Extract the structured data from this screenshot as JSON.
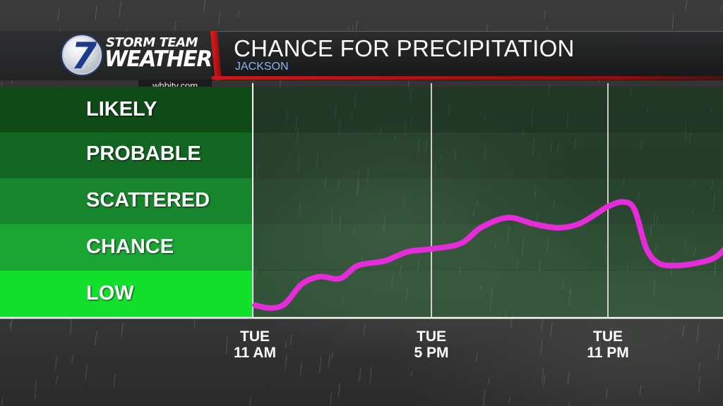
{
  "header": {
    "logo_number": "7",
    "logo_line1": "STORM TEAM",
    "logo_line2": "WEATHER",
    "website": "wbbjtv.com",
    "title": "CHANCE FOR PRECIPITATION",
    "location": "JACKSON"
  },
  "colors": {
    "curve": "#e62bd8",
    "band_likely": "#0f4a17",
    "band_probable": "#136621",
    "band_scattered": "#17852b",
    "band_chance": "#1ba535",
    "band_low": "#12e02d",
    "banner_red": "#c81a1a",
    "location_text": "#8fb2f0"
  },
  "chart_data": {
    "type": "line",
    "title": "CHANCE FOR PRECIPITATION",
    "subtitle": "JACKSON",
    "y_categories": [
      "LOW",
      "CHANCE",
      "SCATTERED",
      "PROBABLE",
      "LIKELY"
    ],
    "x_ticks": [
      {
        "hours": 0,
        "line1": "TUE",
        "line2": "11 AM"
      },
      {
        "hours": 6,
        "line1": "TUE",
        "line2": "5 PM"
      },
      {
        "hours": 12,
        "line1": "TUE",
        "line2": "11 PM"
      }
    ],
    "x_unit": "hours after TUE 11 AM",
    "y_unit": "category level (0 = bottom of LOW, 5 = top of LIKELY)",
    "xlim": [
      0,
      16
    ],
    "ylim": [
      0,
      5
    ],
    "grid": true,
    "series": [
      {
        "x": [
          0,
          0.5,
          1.0,
          1.6,
          2.2,
          2.9,
          3.5,
          4.4,
          5.2,
          6.0,
          7.0,
          7.7,
          8.6,
          9.5,
          10.3,
          11.0,
          11.6,
          12.0,
          12.5,
          12.9,
          13.3,
          13.7,
          14.2,
          14.9,
          15.6,
          16.0
        ],
        "y": [
          0.26,
          0.2,
          0.28,
          0.72,
          0.88,
          0.84,
          1.12,
          1.22,
          1.42,
          1.48,
          1.6,
          1.95,
          2.16,
          2.02,
          1.94,
          2.02,
          2.24,
          2.4,
          2.5,
          2.34,
          1.5,
          1.18,
          1.12,
          1.16,
          1.28,
          1.5
        ]
      }
    ]
  }
}
